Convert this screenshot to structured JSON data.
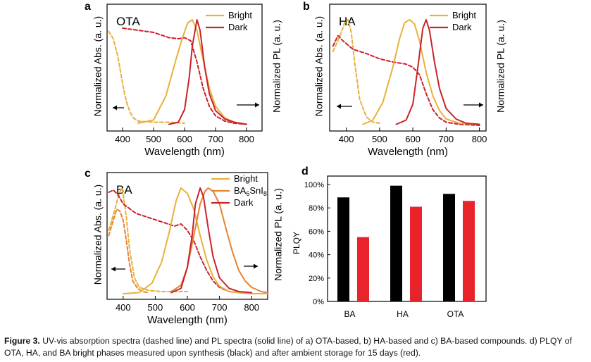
{
  "figure": {
    "caption_label": "Figure 3.",
    "caption_text": "UV-vis absorption spectra (dashed line) and PL spectra (solid line) of a) OTA-based, b) HA-based and c) BA-based compounds. d) PLQY of OTA, HA, and BA bright phases measured upon synthesis (black) and after ambient storage for 15 days (red)."
  },
  "chart_data": [
    {
      "panel": "a",
      "type": "line",
      "title": "OTA",
      "xlabel": "Wavelength (nm)",
      "ylabel_left": "Normalized Abs. (a. u.)",
      "ylabel_right": "Normalized PL (a. u.)",
      "xlim": [
        350,
        850
      ],
      "xticks": [
        400,
        500,
        600,
        700,
        800
      ],
      "arrows": [
        "left",
        "right"
      ],
      "legend": [
        {
          "name": "Bright",
          "color": "#E8B13B"
        },
        {
          "name": "Dark",
          "color": "#C8232C"
        }
      ],
      "series": [
        {
          "name": "Bright",
          "kind": "abs",
          "style": "dashed",
          "color": "#E8B13B",
          "x": [
            355,
            370,
            385,
            395,
            405,
            415,
            425,
            435,
            450,
            500,
            550,
            600
          ],
          "y": [
            0.89,
            0.82,
            0.65,
            0.48,
            0.32,
            0.2,
            0.12,
            0.07,
            0.04,
            0.03,
            0.03,
            0.02
          ]
        },
        {
          "name": "Dark",
          "kind": "abs",
          "style": "dashed",
          "color": "#C8232C",
          "x": [
            400,
            450,
            500,
            550,
            580,
            600,
            620,
            640,
            660,
            680,
            700,
            730,
            760,
            800
          ],
          "y": [
            0.92,
            0.9,
            0.88,
            0.83,
            0.82,
            0.83,
            0.8,
            0.6,
            0.35,
            0.18,
            0.09,
            0.04,
            0.02,
            0.01
          ]
        },
        {
          "name": "Bright",
          "kind": "pl",
          "style": "solid",
          "color": "#E8B13B",
          "x": [
            450,
            500,
            540,
            570,
            590,
            610,
            625,
            640,
            660,
            680,
            700,
            730,
            760,
            800
          ],
          "y": [
            0.02,
            0.05,
            0.28,
            0.6,
            0.8,
            0.97,
            1.0,
            0.9,
            0.62,
            0.35,
            0.18,
            0.07,
            0.03,
            0.01
          ]
        },
        {
          "name": "Dark",
          "kind": "pl",
          "style": "solid",
          "color": "#C8232C",
          "x": [
            550,
            580,
            600,
            615,
            625,
            640,
            650,
            665,
            680,
            700,
            730,
            760,
            800
          ],
          "y": [
            0.01,
            0.03,
            0.15,
            0.45,
            0.75,
            1.0,
            0.9,
            0.55,
            0.3,
            0.14,
            0.06,
            0.03,
            0.01
          ]
        }
      ]
    },
    {
      "panel": "b",
      "type": "line",
      "title": "HA",
      "xlabel": "Wavelength (nm)",
      "ylabel_left": "Normalized Abs. (a. u.)",
      "ylabel_right": "Normalized PL (a. u.)",
      "xlim": [
        350,
        820
      ],
      "xticks": [
        400,
        500,
        600,
        700,
        800
      ],
      "arrows": [
        "left",
        "right"
      ],
      "legend": [
        {
          "name": "Bright",
          "color": "#E8B13B"
        },
        {
          "name": "Dark",
          "color": "#C8232C"
        }
      ],
      "series": [
        {
          "name": "Bright",
          "kind": "abs",
          "style": "dashed",
          "color": "#E8B13B",
          "x": [
            360,
            380,
            395,
            405,
            415,
            425,
            440,
            460,
            480,
            500
          ],
          "y": [
            0.7,
            0.84,
            0.97,
            1.0,
            0.88,
            0.6,
            0.25,
            0.08,
            0.03,
            0.02
          ]
        },
        {
          "name": "Dark",
          "kind": "abs",
          "style": "dashed",
          "color": "#C8232C",
          "x": [
            360,
            375,
            390,
            420,
            460,
            500,
            540,
            580,
            600,
            620,
            640,
            660,
            680,
            700,
            740,
            800
          ],
          "y": [
            0.75,
            0.85,
            0.8,
            0.72,
            0.68,
            0.63,
            0.6,
            0.58,
            0.55,
            0.48,
            0.3,
            0.15,
            0.07,
            0.03,
            0.01,
            0.0
          ]
        },
        {
          "name": "Bright",
          "kind": "pl",
          "style": "solid",
          "color": "#E8B13B",
          "x": [
            450,
            480,
            510,
            540,
            560,
            575,
            590,
            605,
            620,
            640,
            660,
            680,
            700,
            740,
            800
          ],
          "y": [
            0.01,
            0.05,
            0.22,
            0.55,
            0.82,
            0.97,
            1.0,
            0.96,
            0.8,
            0.5,
            0.28,
            0.14,
            0.06,
            0.02,
            0.01
          ]
        },
        {
          "name": "Dark",
          "kind": "pl",
          "style": "solid",
          "color": "#C8232C",
          "x": [
            550,
            580,
            600,
            615,
            630,
            640,
            650,
            665,
            680,
            700,
            730,
            760,
            800
          ],
          "y": [
            0.01,
            0.05,
            0.2,
            0.55,
            0.92,
            1.0,
            0.9,
            0.6,
            0.35,
            0.16,
            0.06,
            0.02,
            0.01
          ]
        }
      ]
    },
    {
      "panel": "c",
      "type": "line",
      "title": "BA",
      "xlabel": "Wavelength (nm)",
      "ylabel_left": "Normalized Abs. (a. u.)",
      "ylabel_right": "Normalized PL (a. u.)",
      "xlim": [
        350,
        850
      ],
      "xticks": [
        400,
        500,
        600,
        700,
        800
      ],
      "arrows": [
        "left",
        "right"
      ],
      "legend": [
        {
          "name": "Bright",
          "color": "#E8B13B"
        },
        {
          "name": "BA6SnI8",
          "color": "#E8822E"
        },
        {
          "name": "Dark",
          "color": "#C8232C"
        }
      ],
      "series": [
        {
          "name": "Bright",
          "kind": "abs",
          "style": "dashed",
          "color": "#E8B13B",
          "x": [
            355,
            370,
            385,
            395,
            400,
            410,
            420,
            435,
            450,
            480,
            520,
            600
          ],
          "y": [
            0.6,
            0.75,
            0.92,
            1.0,
            0.95,
            0.72,
            0.42,
            0.15,
            0.06,
            0.03,
            0.02,
            0.02
          ]
        },
        {
          "name": "BA6SnI8",
          "kind": "abs",
          "style": "dashed",
          "color": "#E8822E",
          "x": [
            355,
            370,
            380,
            390,
            400,
            410,
            420,
            430,
            445,
            460,
            480
          ],
          "y": [
            0.55,
            0.7,
            0.8,
            0.78,
            0.7,
            0.5,
            0.28,
            0.12,
            0.05,
            0.02,
            0.01
          ]
        },
        {
          "name": "Dark",
          "kind": "abs",
          "style": "dashed",
          "color": "#C8232C",
          "x": [
            355,
            370,
            385,
            400,
            440,
            480,
            520,
            560,
            580,
            600,
            620,
            640,
            660,
            680,
            700,
            730,
            760,
            800
          ],
          "y": [
            0.96,
            0.98,
            0.93,
            0.85,
            0.76,
            0.72,
            0.68,
            0.64,
            0.66,
            0.6,
            0.5,
            0.35,
            0.22,
            0.12,
            0.06,
            0.02,
            0.01,
            0.0
          ]
        },
        {
          "name": "Bright",
          "kind": "pl",
          "style": "solid",
          "color": "#E8B13B",
          "x": [
            400,
            450,
            490,
            520,
            545,
            565,
            580,
            600,
            620,
            640,
            660,
            680,
            700,
            730,
            760,
            800,
            850
          ],
          "y": [
            0.0,
            0.01,
            0.1,
            0.3,
            0.6,
            0.88,
            1.0,
            0.95,
            0.8,
            0.55,
            0.32,
            0.16,
            0.07,
            0.02,
            0.01,
            0.0,
            0.0
          ]
        },
        {
          "name": "BA6SnI8",
          "kind": "pl",
          "style": "solid",
          "color": "#E8822E",
          "x": [
            550,
            580,
            600,
            620,
            640,
            655,
            665,
            680,
            700,
            720,
            740,
            760,
            780,
            800,
            830,
            850
          ],
          "y": [
            0.02,
            0.08,
            0.25,
            0.55,
            0.85,
            0.97,
            1.0,
            0.97,
            0.85,
            0.62,
            0.4,
            0.22,
            0.12,
            0.06,
            0.02,
            0.01
          ]
        },
        {
          "name": "Dark",
          "kind": "pl",
          "style": "solid",
          "color": "#C8232C",
          "x": [
            550,
            580,
            600,
            615,
            625,
            640,
            650,
            665,
            680,
            700,
            730,
            760,
            800
          ],
          "y": [
            0.01,
            0.05,
            0.25,
            0.55,
            0.85,
            1.0,
            0.92,
            0.62,
            0.35,
            0.15,
            0.05,
            0.02,
            0.01
          ]
        }
      ]
    },
    {
      "panel": "d",
      "type": "bar",
      "title": "",
      "xlabel": "",
      "ylabel": "PLQY",
      "categories": [
        "BA",
        "HA",
        "OTA"
      ],
      "ylim": [
        0,
        100
      ],
      "ytick_labels": [
        "0%",
        "20%",
        "40%",
        "60%",
        "80%",
        "100%"
      ],
      "series": [
        {
          "name": "upon synthesis",
          "color": "#000000",
          "values": [
            89,
            99,
            92
          ]
        },
        {
          "name": "after 15 days",
          "color": "#E8232C",
          "values": [
            55,
            81,
            86
          ]
        }
      ]
    }
  ]
}
